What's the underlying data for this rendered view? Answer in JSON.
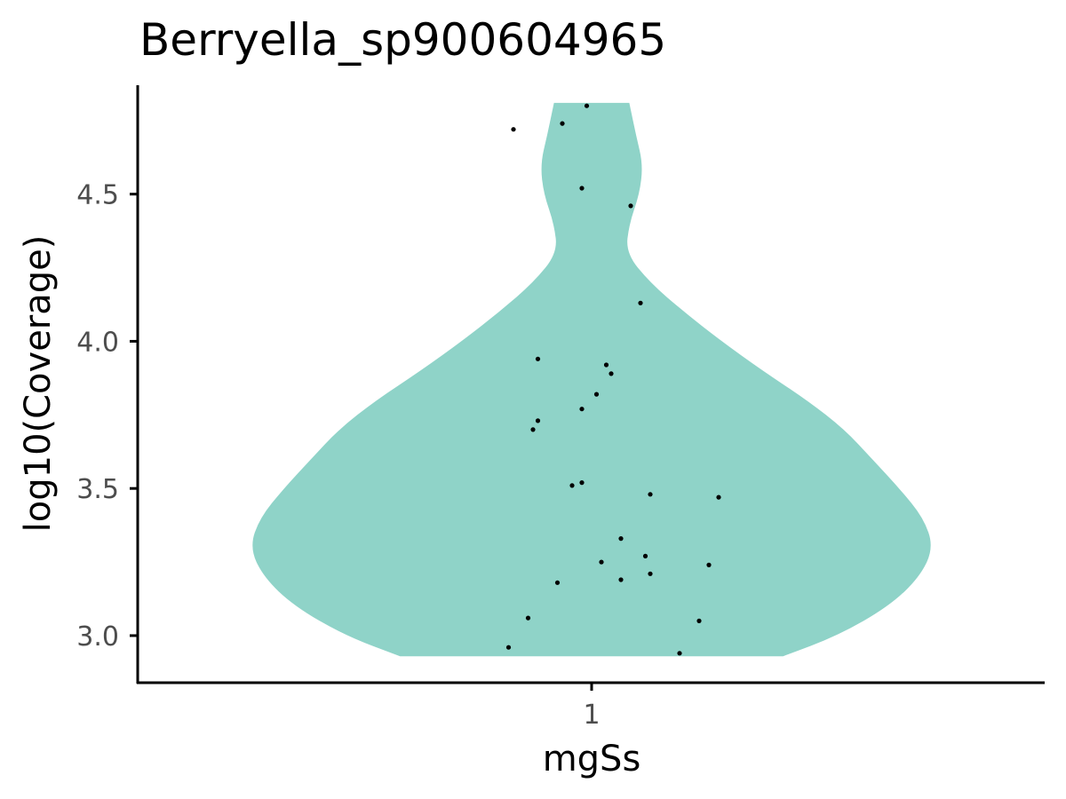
{
  "chart_data": {
    "type": "violin",
    "title": "Berryella_sp900604965",
    "xlabel": "mgSs",
    "ylabel": "log10(Coverage)",
    "categories": [
      "1"
    ],
    "ylim": [
      2.84,
      4.87
    ],
    "yticks": [
      3.0,
      3.5,
      4.0,
      4.5
    ],
    "ytick_labels": [
      "3.0",
      "3.5",
      "4.0",
      "4.5"
    ],
    "violin_range": [
      2.93,
      4.81
    ],
    "violin_color": "#8fd3c8",
    "point_color": "#000000",
    "grid": false,
    "legend": "none",
    "density_profile": [
      {
        "y": 2.93,
        "w": 0.56
      },
      {
        "y": 3.0,
        "w": 0.72
      },
      {
        "y": 3.1,
        "w": 0.87
      },
      {
        "y": 3.2,
        "w": 0.96
      },
      {
        "y": 3.3,
        "w": 1.0
      },
      {
        "y": 3.4,
        "w": 0.97
      },
      {
        "y": 3.5,
        "w": 0.9
      },
      {
        "y": 3.6,
        "w": 0.82
      },
      {
        "y": 3.7,
        "w": 0.74
      },
      {
        "y": 3.8,
        "w": 0.63
      },
      {
        "y": 3.9,
        "w": 0.5
      },
      {
        "y": 4.0,
        "w": 0.38
      },
      {
        "y": 4.1,
        "w": 0.27
      },
      {
        "y": 4.2,
        "w": 0.17
      },
      {
        "y": 4.3,
        "w": 0.1
      },
      {
        "y": 4.4,
        "w": 0.11
      },
      {
        "y": 4.5,
        "w": 0.14
      },
      {
        "y": 4.6,
        "w": 0.15
      },
      {
        "y": 4.7,
        "w": 0.13
      },
      {
        "y": 4.81,
        "w": 0.11
      }
    ],
    "points": [
      {
        "x": 0.84,
        "y": 4.72
      },
      {
        "x": 0.94,
        "y": 4.74
      },
      {
        "x": 0.99,
        "y": 4.8
      },
      {
        "x": 0.98,
        "y": 4.52
      },
      {
        "x": 1.08,
        "y": 4.46
      },
      {
        "x": 1.1,
        "y": 4.13
      },
      {
        "x": 0.89,
        "y": 3.94
      },
      {
        "x": 1.03,
        "y": 3.92
      },
      {
        "x": 1.04,
        "y": 3.89
      },
      {
        "x": 1.01,
        "y": 3.82
      },
      {
        "x": 0.98,
        "y": 3.77
      },
      {
        "x": 0.89,
        "y": 3.73
      },
      {
        "x": 0.88,
        "y": 3.7
      },
      {
        "x": 0.98,
        "y": 3.52
      },
      {
        "x": 0.96,
        "y": 3.51
      },
      {
        "x": 1.12,
        "y": 3.48
      },
      {
        "x": 1.26,
        "y": 3.47
      },
      {
        "x": 1.06,
        "y": 3.33
      },
      {
        "x": 1.11,
        "y": 3.27
      },
      {
        "x": 1.02,
        "y": 3.25
      },
      {
        "x": 1.24,
        "y": 3.24
      },
      {
        "x": 1.12,
        "y": 3.21
      },
      {
        "x": 1.06,
        "y": 3.19
      },
      {
        "x": 0.93,
        "y": 3.18
      },
      {
        "x": 0.87,
        "y": 3.06
      },
      {
        "x": 1.22,
        "y": 3.05
      },
      {
        "x": 0.83,
        "y": 2.96
      },
      {
        "x": 1.18,
        "y": 2.94
      }
    ]
  }
}
